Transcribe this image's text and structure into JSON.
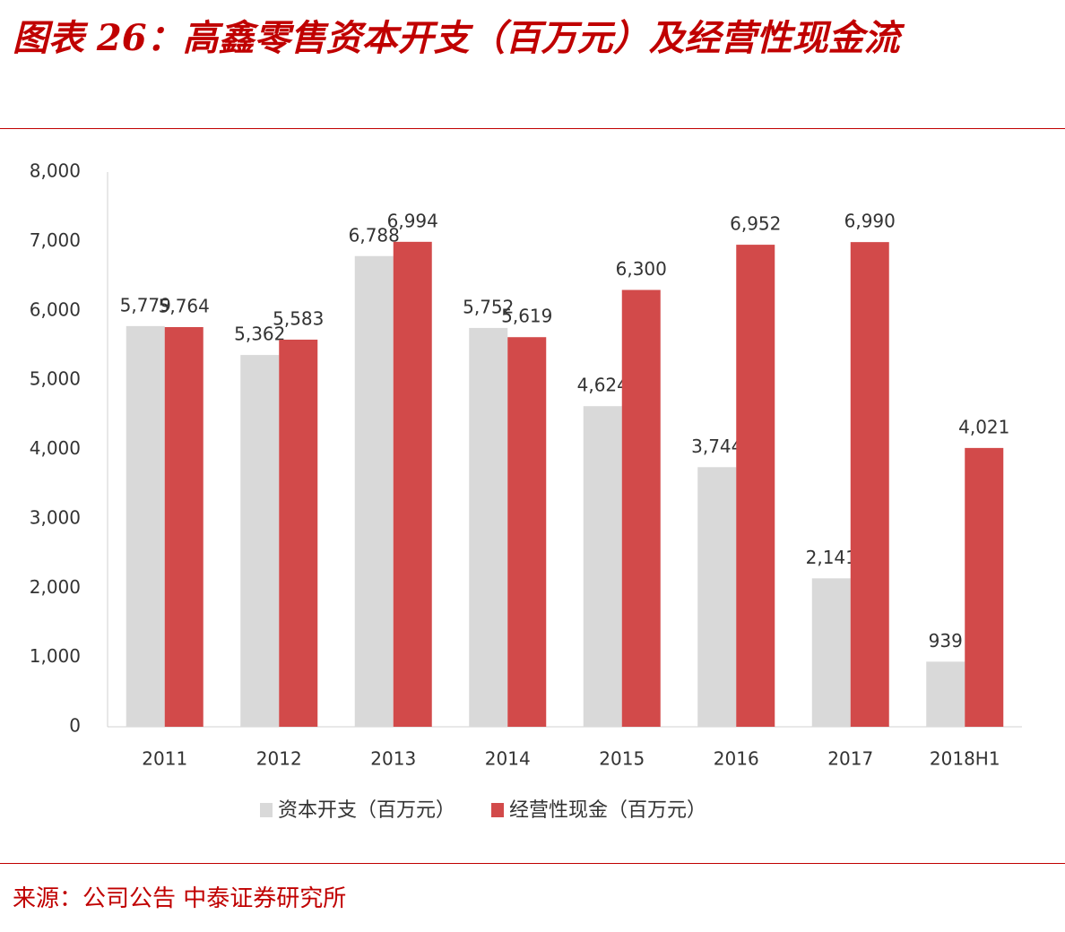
{
  "chart_data": {
    "type": "bar",
    "title": "图表 26：高鑫零售资本开支（百万元）及经营性现金流",
    "source": "来源：公司公告 中泰证券研究所",
    "categories": [
      "2011",
      "2012",
      "2013",
      "2014",
      "2015",
      "2016",
      "2017",
      "2018H1"
    ],
    "series": [
      {
        "name": "资本开支（百万元）",
        "color": "#d9d9d9",
        "values": [
          5779,
          5362,
          6788,
          5752,
          4624,
          3744,
          2141,
          939
        ],
        "value_labels": [
          "5,779",
          "5,362",
          "6,788",
          "5,752",
          "4,624",
          "3,744",
          "2,141",
          "939"
        ]
      },
      {
        "name": "经营性现金（百万元）",
        "color": "#d24a4a",
        "values": [
          5764,
          5583,
          6994,
          5619,
          6300,
          6952,
          6990,
          4021
        ],
        "value_labels": [
          "5,764",
          "5,583",
          "6,994",
          "5,619",
          "6,300",
          "6,952",
          "6,990",
          "4,021"
        ]
      }
    ],
    "ylim": [
      0,
      8000
    ],
    "yticks": [
      0,
      {
        "value": 1000,
        "label": "1,000"
      },
      {
        "value": 2000,
        "label": "2,000"
      },
      {
        "value": 3000,
        "label": "3,000"
      },
      {
        "value": 4000,
        "label": "4,000"
      },
      {
        "value": 5000,
        "label": "5,000"
      },
      {
        "value": 6000,
        "label": "6,000"
      },
      {
        "value": 7000,
        "label": "7,000"
      },
      {
        "value": 8000,
        "label": "8,000"
      }
    ],
    "grid": false
  }
}
